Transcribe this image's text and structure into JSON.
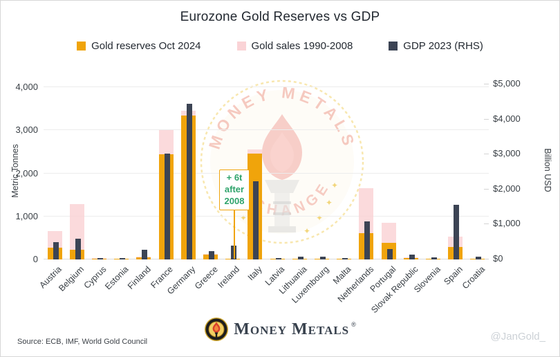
{
  "title": "Eurozone Gold Reserves vs GDP",
  "legend": [
    {
      "label": "Gold reserves Oct 2024",
      "color": "#F0A40B"
    },
    {
      "label": "Gold sales 1990-2008",
      "color": "#FAD3D6"
    },
    {
      "label": "GDP 2023 (RHS)",
      "color": "#3C4454"
    }
  ],
  "axes": {
    "left": {
      "label": "Metric Tonnes",
      "ticks": [
        "0",
        "1,000",
        "2,000",
        "3,000",
        "4,000"
      ]
    },
    "right": {
      "label": "Billion USD",
      "ticks": [
        "$0",
        "$1,000",
        "$2,000",
        "$3,000",
        "$4,000",
        "$5,000"
      ]
    }
  },
  "annotation": {
    "lines": [
      "+ 6t",
      "after",
      "2008"
    ],
    "target_country": "Ireland"
  },
  "watermark": {
    "top_text": "MONEY METALS",
    "bottom_text": "EXCHANGE",
    "star": "✦"
  },
  "footer": {
    "source": "Source: ECB, IMF, World Gold Council",
    "logo_word1": "Money",
    "logo_word2": "Metals",
    "reg_mark": "®",
    "handle": "@JanGold_"
  },
  "colors": {
    "gold_bar": "#F0A40B",
    "pink_bar": "#FAD3D6",
    "gdp_bar": "#3C4454",
    "annotation_green": "#2EA36B",
    "annotation_border": "#F0A40B",
    "grid": "#ececec",
    "handle_gray": "#CCD1D6"
  },
  "chart_data": {
    "type": "bar",
    "title": "Eurozone Gold Reserves vs GDP",
    "categories": [
      "Austria",
      "Belgium",
      "Cyprus",
      "Estonia",
      "Finland",
      "France",
      "Germany",
      "Greece",
      "Ireland",
      "Italy",
      "Latvia",
      "Lithuania",
      "Luxembourg",
      "Malta",
      "Netherlands",
      "Portugal",
      "Slovak Republic",
      "Slovenia",
      "Spain",
      "Croatia"
    ],
    "series": [
      {
        "name": "Gold reserves Oct 2024",
        "axis": "left",
        "unit": "metric tonnes",
        "color": "#F0A40B",
        "values": [
          280,
          227,
          14,
          1,
          49,
          2437,
          3350,
          114,
          12,
          2452,
          7,
          6,
          2,
          0.3,
          612,
          383,
          32,
          3,
          282,
          2
        ]
      },
      {
        "name": "Gold sales 1990-2008",
        "axis": "left",
        "unit": "metric tonnes (bar top = pre-sale holdings)",
        "color": "#FAD3D6",
        "values": [
          660,
          1280,
          25,
          10,
          65,
          3000,
          3455,
          130,
          18,
          2560,
          20,
          15,
          12,
          8,
          1655,
          845,
          45,
          8,
          525,
          5
        ]
      },
      {
        "name": "GDP 2023 (RHS)",
        "axis": "right",
        "unit": "billion USD",
        "color": "#3C4454",
        "values": [
          500,
          585,
          33,
          41,
          280,
          3030,
          4445,
          240,
          400,
          2230,
          48,
          80,
          86,
          22,
          1090,
          290,
          132,
          70,
          1560,
          85
        ]
      }
    ],
    "ylabel_left": "Metric Tonnes",
    "ylabel_right": "Billion USD",
    "ylim_left": [
      0,
      4000
    ],
    "ylim_right": [
      0,
      5000
    ],
    "grid": "horizontal",
    "legend_position": "top",
    "annotation": "+ 6t after 2008 (points to Ireland gold reserves)"
  }
}
